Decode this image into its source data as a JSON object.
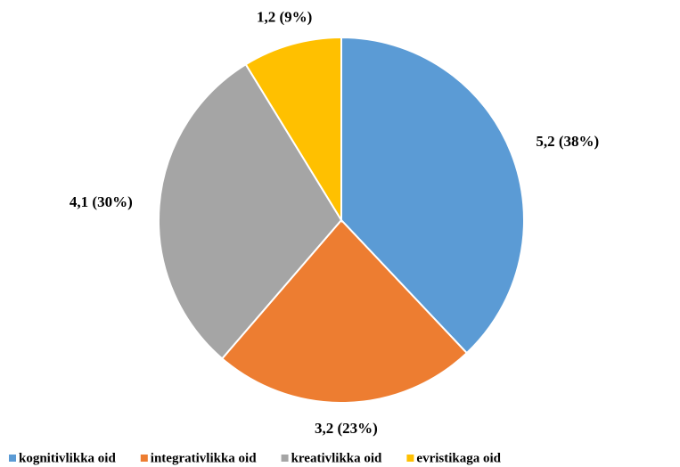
{
  "chart_data": {
    "type": "pie",
    "categories": [
      "kognitivlikka oid",
      "integrativlikka oid",
      "kreativlikka oid",
      "evristikaga oid"
    ],
    "values": [
      5.2,
      3.2,
      4.1,
      1.2
    ],
    "value_labels": [
      "5,2 (38%)",
      "3,2 (23%)",
      "4,1 (30%)",
      "1,2 (9%)"
    ],
    "colors": [
      "#5b9bd5",
      "#ed7d31",
      "#a5a5a5",
      "#ffc000"
    ],
    "legend": "bottom"
  }
}
